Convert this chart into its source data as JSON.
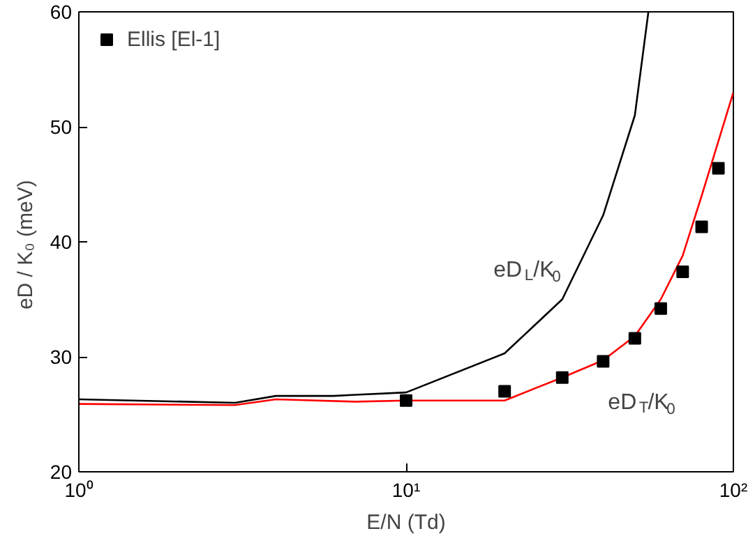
{
  "chart_data": {
    "type": "line",
    "xlabel": "E/N (Td)",
    "ylabel": "eD / K₀  (meV)",
    "log": "x",
    "xlim": [
      1,
      100
    ],
    "xticks": [
      {
        "value": 1,
        "label": "10⁰"
      },
      {
        "value": 10,
        "label": "10¹"
      },
      {
        "value": 100,
        "label": "10²"
      }
    ],
    "ylim": [
      20,
      60
    ],
    "yticks": [
      20,
      30,
      40,
      50,
      60
    ],
    "grid": false,
    "legend": "top left",
    "series": [
      {
        "color": "#000000",
        "x": [
          1,
          3,
          4,
          6,
          7,
          10,
          20,
          30,
          40,
          50,
          55
        ],
        "values": [
          26.3,
          26.0,
          26.6,
          26.6,
          26.7,
          26.9,
          30.3,
          35.0,
          42.3,
          51.0,
          60.0
        ]
      },
      {
        "color": "#ff0000",
        "x": [
          1,
          3,
          4,
          7,
          10,
          20,
          30,
          40,
          50,
          60,
          70,
          80,
          100
        ],
        "values": [
          25.9,
          25.8,
          26.3,
          26.1,
          26.2,
          26.2,
          28.2,
          29.7,
          31.8,
          35.0,
          38.8,
          44.0,
          53.0
        ]
      },
      {
        "type": "scatter",
        "name": "Ellis [El-1]",
        "color": "#000000",
        "marker": "square",
        "x": [
          10,
          20,
          30,
          40,
          50,
          60,
          70,
          80,
          90
        ],
        "values": [
          26.2,
          27.0,
          28.2,
          29.6,
          31.6,
          34.2,
          37.4,
          41.3,
          46.4
        ]
      }
    ],
    "annotations": [
      "eD$_{L}$/K$_{0}$",
      "eD$_{T}$/K$_{0}$"
    ]
  }
}
